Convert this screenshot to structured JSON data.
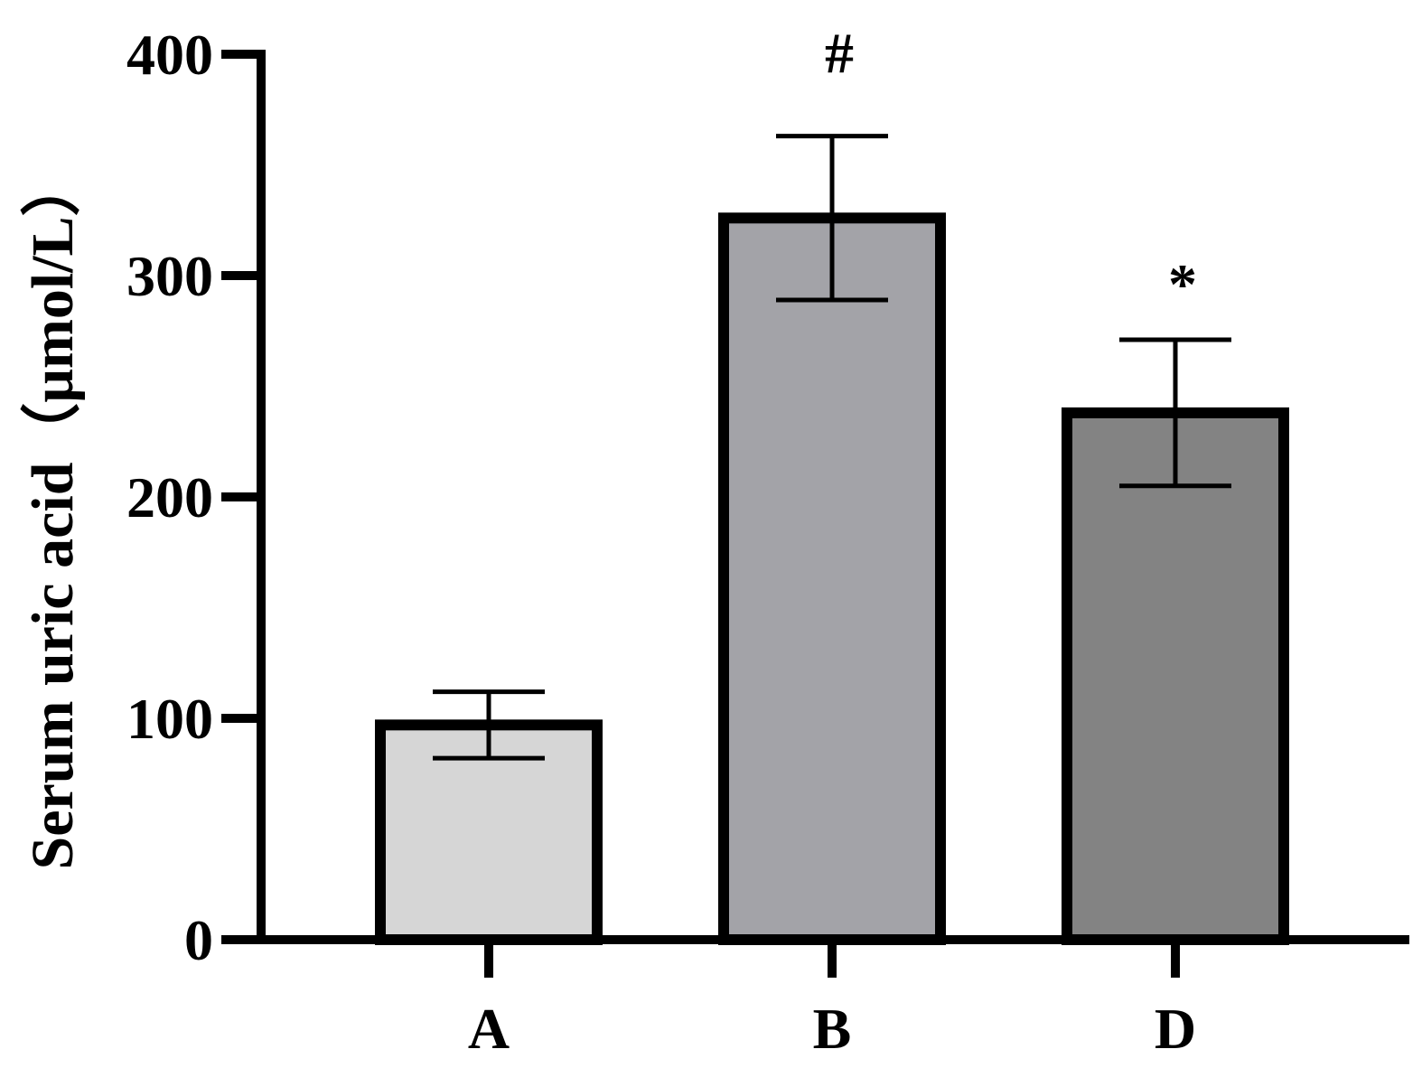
{
  "chart_data": {
    "type": "bar",
    "title": "",
    "xlabel": "",
    "ylabel": "Serum uric acid（μmol/L）",
    "categories": [
      "A",
      "B",
      "D"
    ],
    "values": [
      97,
      326,
      238
    ],
    "errors": [
      15,
      37,
      33
    ],
    "annotations": [
      "",
      "#",
      "*"
    ],
    "ylim": [
      0,
      400
    ],
    "yticks": [
      0,
      100,
      200,
      300,
      400
    ],
    "ytick_labels": [
      "0",
      "100",
      "200",
      "300",
      "400"
    ],
    "grid": false,
    "colors": [
      "#d6d6d6",
      "#a3a3a8",
      "#838383"
    ],
    "edge_color": "#000000"
  }
}
